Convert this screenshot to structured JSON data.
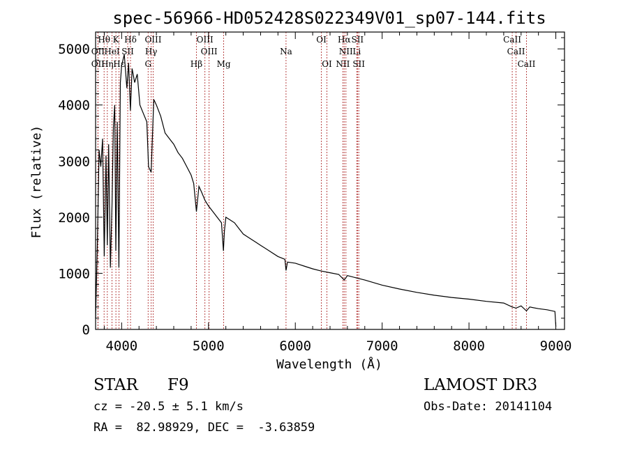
{
  "chart_data": {
    "type": "line",
    "title": "spec-56966-HD052428S022349V01_sp07-144.fits",
    "xlabel": "Wavelength (Å)",
    "ylabel": "Flux (relative)",
    "xlim": [
      3700,
      9100
    ],
    "ylim": [
      0,
      5300
    ],
    "xticks": [
      4000,
      5000,
      6000,
      7000,
      8000,
      9000
    ],
    "yticks": [
      0,
      1000,
      2000,
      3000,
      4000,
      5000
    ],
    "series": [
      {
        "name": "flux",
        "x": [
          3700,
          3720,
          3740,
          3760,
          3780,
          3800,
          3820,
          3835,
          3850,
          3870,
          3889,
          3905,
          3920,
          3933,
          3950,
          3968,
          3985,
          4000,
          4030,
          4060,
          4080,
          4101,
          4120,
          4150,
          4180,
          4210,
          4250,
          4290,
          4310,
          4340,
          4370,
          4400,
          4450,
          4500,
          4550,
          4600,
          4650,
          4700,
          4750,
          4800,
          4830,
          4861,
          4890,
          4920,
          4960,
          5000,
          5050,
          5100,
          5150,
          5172,
          5183,
          5200,
          5250,
          5300,
          5350,
          5400,
          5450,
          5500,
          5550,
          5600,
          5700,
          5800,
          5880,
          5893,
          5910,
          6000,
          6100,
          6200,
          6300,
          6400,
          6500,
          6563,
          6600,
          6700,
          6800,
          7000,
          7200,
          7400,
          7600,
          7800,
          8000,
          8200,
          8400,
          8498,
          8542,
          8600,
          8662,
          8700,
          8800,
          8900,
          8990,
          9000
        ],
        "values": [
          200,
          1500,
          3200,
          2900,
          3400,
          1300,
          3100,
          1500,
          3300,
          1100,
          2200,
          3600,
          4000,
          1400,
          3700,
          1100,
          4400,
          4700,
          4900,
          4300,
          4750,
          3900,
          4650,
          4400,
          4550,
          4000,
          3850,
          3700,
          2900,
          2800,
          4100,
          4000,
          3800,
          3500,
          3400,
          3300,
          3150,
          3050,
          2900,
          2750,
          2600,
          2100,
          2550,
          2450,
          2300,
          2200,
          2100,
          2000,
          1900,
          1400,
          1750,
          2000,
          1950,
          1900,
          1800,
          1700,
          1650,
          1600,
          1550,
          1500,
          1400,
          1300,
          1250,
          1050,
          1200,
          1180,
          1130,
          1080,
          1040,
          1010,
          980,
          880,
          960,
          920,
          880,
          790,
          720,
          660,
          610,
          570,
          540,
          500,
          470,
          400,
          380,
          420,
          330,
          400,
          370,
          350,
          320,
          50
        ]
      }
    ],
    "lines": [
      {
        "label": "Hθ",
        "wave": 3798,
        "row": 0
      },
      {
        "label": "K",
        "wave": 3934,
        "row": 0
      },
      {
        "label": "Hδ",
        "wave": 4102,
        "row": 0
      },
      {
        "label": "OIII",
        "wave": 4363,
        "row": 0
      },
      {
        "label": "OIII",
        "wave": 4959,
        "row": 0
      },
      {
        "label": "OI",
        "wave": 6300,
        "row": 0
      },
      {
        "label": "Hα",
        "wave": 6563,
        "row": 0
      },
      {
        "label": "SII",
        "wave": 6716,
        "row": 0
      },
      {
        "label": "CaII",
        "wave": 8498,
        "row": 0
      },
      {
        "label": "OII",
        "wave": 3727,
        "row": 1
      },
      {
        "label": "HeI",
        "wave": 3889,
        "row": 1
      },
      {
        "label": "SII",
        "wave": 4070,
        "row": 1
      },
      {
        "label": "Hγ",
        "wave": 4340,
        "row": 1
      },
      {
        "label": "OIII",
        "wave": 5007,
        "row": 1
      },
      {
        "label": "Na",
        "wave": 5893,
        "row": 1
      },
      {
        "label": "NII",
        "wave": 6583,
        "row": 1
      },
      {
        "label": "Li",
        "wave": 6708,
        "row": 1
      },
      {
        "label": "CaII",
        "wave": 8542,
        "row": 1
      },
      {
        "label": "OII",
        "wave": 3727,
        "row": 2
      },
      {
        "label": "Hη",
        "wave": 3835,
        "row": 2
      },
      {
        "label": "Hε",
        "wave": 3970,
        "row": 2
      },
      {
        "label": "G",
        "wave": 4305,
        "row": 2
      },
      {
        "label": "Hβ",
        "wave": 4861,
        "row": 2
      },
      {
        "label": "Mg",
        "wave": 5175,
        "row": 2
      },
      {
        "label": "OI",
        "wave": 6364,
        "row": 2
      },
      {
        "label": "NII",
        "wave": 6548,
        "row": 2
      },
      {
        "label": "SII",
        "wave": 6731,
        "row": 2
      },
      {
        "label": "CaII",
        "wave": 8662,
        "row": 2
      }
    ],
    "line_color": "#b03030"
  },
  "info": {
    "object_class": "STAR",
    "subclass": "F9",
    "cz": "cz = -20.5 ± 5.1 km/s",
    "coords": "RA =  82.98929, DEC =  -3.63859",
    "survey": "LAMOST DR3",
    "obs_date": "Obs-Date: 20141104"
  }
}
